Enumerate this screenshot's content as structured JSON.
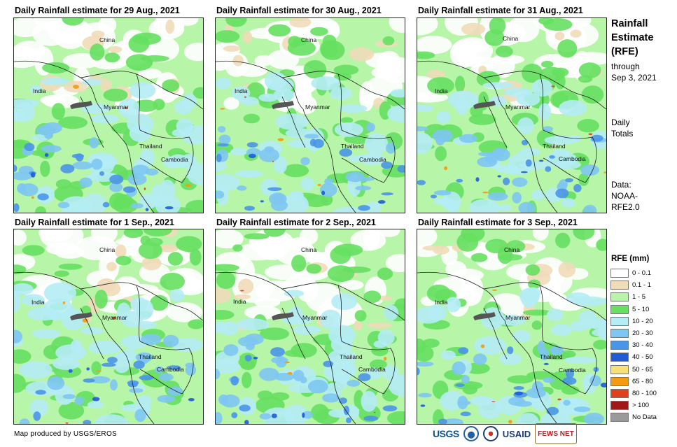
{
  "panels": [
    {
      "title": "Daily Rainfall estimate for 29 Aug., 2021"
    },
    {
      "title": "Daily Rainfall estimate for 30 Aug., 2021"
    },
    {
      "title": "Daily Rainfall estimate for 31 Aug., 2021"
    },
    {
      "title": "Daily Rainfall estimate for 1  Sep., 2021"
    },
    {
      "title": "Daily Rainfall estimate for 2  Sep., 2021"
    },
    {
      "title": "Daily Rainfall estimate for 3  Sep., 2021"
    }
  ],
  "labels": {
    "china": "China",
    "india": "India",
    "myanmar": "Myanmar",
    "thailand": "Thailand",
    "cambodia": "Cambodia"
  },
  "sidebar": {
    "title_line1": "Rainfall",
    "title_line2": "Estimate",
    "title_line3": "(RFE)",
    "through_line1": "through",
    "through_line2": "Sep 3, 2021",
    "daily_line1": "Daily",
    "daily_line2": "Totals",
    "data_line1": "Data:",
    "data_line2": "NOAA-",
    "data_line3": "RFE2.0"
  },
  "legend": {
    "title": "RFE (mm)",
    "items": [
      {
        "label": "0 - 0.1",
        "color": "#ffffff"
      },
      {
        "label": "0.1 - 1",
        "color": "#efdcb9"
      },
      {
        "label": "1 - 5",
        "color": "#b7f5a8"
      },
      {
        "label": "5 - 10",
        "color": "#66e060"
      },
      {
        "label": "10 - 20",
        "color": "#b5ecf5"
      },
      {
        "label": "20 - 30",
        "color": "#7ec7f2"
      },
      {
        "label": "30 - 40",
        "color": "#4b95e8"
      },
      {
        "label": "40 - 50",
        "color": "#1f5bd8"
      },
      {
        "label": "50 - 65",
        "color": "#f5e07a"
      },
      {
        "label": "65 - 80",
        "color": "#f59a10"
      },
      {
        "label": "80 - 100",
        "color": "#e0401a"
      },
      {
        "label": "> 100",
        "color": "#a01818"
      },
      {
        "label": "No Data",
        "color": "#9a9a9a"
      }
    ]
  },
  "footer": {
    "credit": "Map produced by USGS/EROS",
    "logo_usgs": "USGS",
    "logo_usaid": "USAID",
    "logo_fews": "FEWS NET"
  }
}
